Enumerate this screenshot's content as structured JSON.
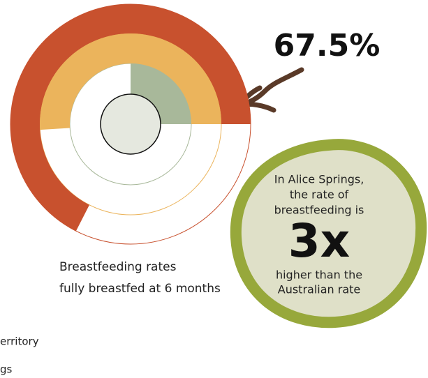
{
  "chart_data": {
    "type": "radial_bar",
    "series": [
      {
        "color": "#c8512e",
        "values": [
          67.5
        ],
        "value_labels": [
          "67.5%"
        ]
      },
      {
        "color": "#ebb45c",
        "values": [
          51
        ]
      },
      {
        "color": "#a8b89a",
        "values": [
          25
        ]
      }
    ],
    "start_angle": 90,
    "caption": [
      "Breastfeeding rates",
      "fully breastfed at 6 months"
    ],
    "callout": {
      "lines_top": [
        "In Alice Springs,",
        "the rate of",
        "breastfeeding is"
      ],
      "big": "3x",
      "lines_bottom": [
        "higher than the",
        "Australian rate"
      ]
    },
    "legend_fragments": [
      "erritory",
      "gs"
    ]
  }
}
